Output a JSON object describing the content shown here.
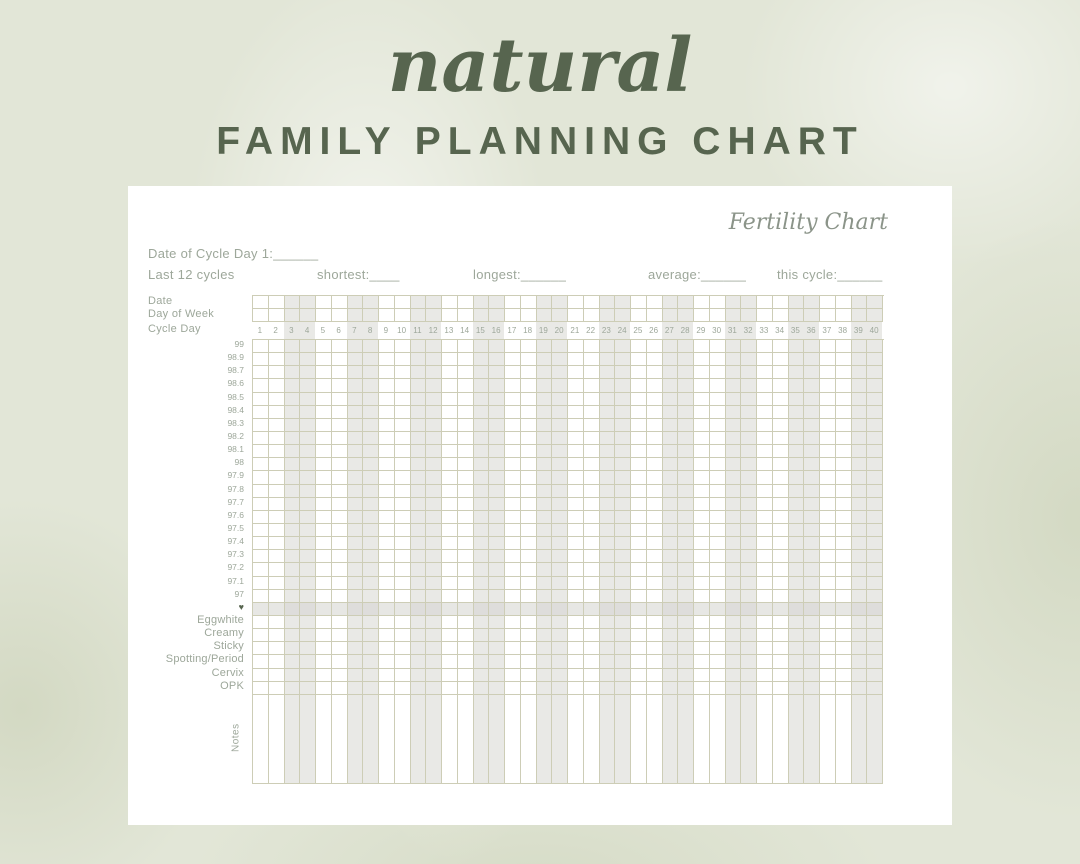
{
  "title": {
    "script": "natural",
    "main": "FAMILY PLANNING CHART"
  },
  "card": {
    "heading": "Fertility Chart",
    "date_line": {
      "label": "Date of Cycle Day 1:",
      "blank": "______"
    },
    "cycles_line": {
      "label": "Last 12 cycles",
      "items": [
        {
          "label": "shortest:",
          "blank": "____"
        },
        {
          "label": "longest:",
          "blank": "______"
        },
        {
          "label": "average:",
          "blank": "______"
        },
        {
          "label": "this cycle:",
          "blank": "______"
        }
      ]
    }
  },
  "chart": {
    "header_rows": [
      "Date",
      "Day of Week",
      "Cycle Day"
    ],
    "cycle_days": [
      1,
      2,
      3,
      4,
      5,
      6,
      7,
      8,
      9,
      10,
      11,
      12,
      13,
      14,
      15,
      16,
      17,
      18,
      19,
      20,
      21,
      22,
      23,
      24,
      25,
      26,
      27,
      28,
      29,
      30,
      31,
      32,
      33,
      34,
      35,
      36,
      37,
      38,
      39,
      40
    ],
    "temperatures": [
      "99",
      "98.9",
      "98.7",
      "98.6",
      "98.5",
      "98.4",
      "98.3",
      "98.2",
      "98.1",
      "98",
      "97.9",
      "97.8",
      "97.7",
      "97.6",
      "97.5",
      "97.4",
      "97.3",
      "97.2",
      "97.1",
      "97"
    ],
    "heart_symbol": "♥",
    "observation_rows": [
      "Eggwhite",
      "Creamy",
      "Sticky",
      "Spotting/Period",
      "Cervix",
      "OPK"
    ],
    "notes_label": "Notes",
    "columns": 40,
    "shading_pattern": "alternating pairs of columns shaded"
  },
  "colors": {
    "accent_green": "#57654f",
    "muted_text": "#9da79a",
    "grid_line": "#cdcdb6",
    "shaded_cell": "#e9e9e6",
    "heart_row": "#e7e7e4",
    "heart_row_dark": "#dedddb",
    "card_bg": "#ffffff",
    "page_bg": "#e2e6d7"
  }
}
